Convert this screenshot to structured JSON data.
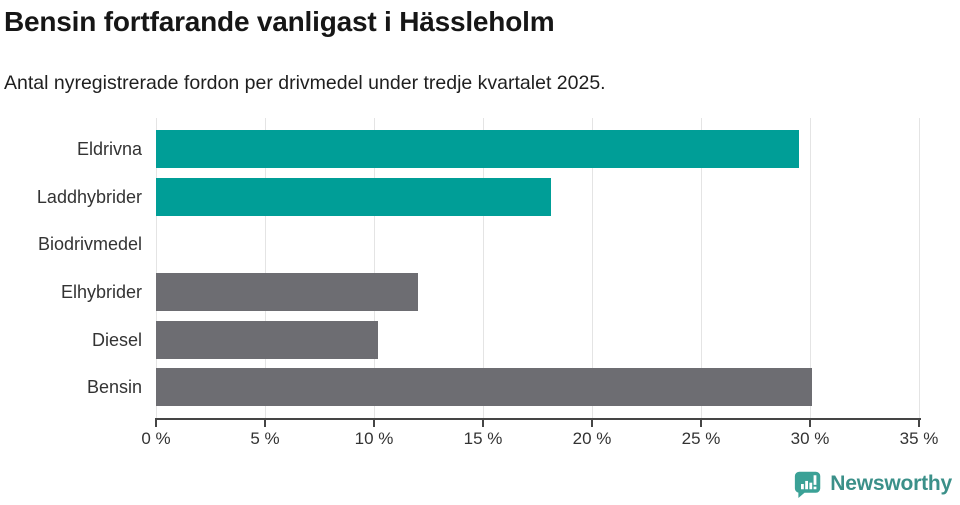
{
  "header": {
    "title": "Bensin fortfarande vanligast i Hässleholm",
    "subtitle": "Antal nyregistrerade fordon per drivmedel under tredje kvartalet 2025."
  },
  "chart_data": {
    "type": "bar",
    "orientation": "horizontal",
    "title": "Bensin fortfarande vanligast i Hässleholm",
    "subtitle": "Antal nyregistrerade fordon per drivmedel under tredje kvartalet 2025.",
    "categories": [
      "Eldrivna",
      "Laddhybrider",
      "Biodrivmedel",
      "Elhybrider",
      "Diesel",
      "Bensin"
    ],
    "values": [
      29.5,
      18.1,
      0,
      12.0,
      10.2,
      30.1
    ],
    "unit": "%",
    "xlim": [
      0,
      35
    ],
    "x_tick_values": [
      0,
      5,
      10,
      15,
      20,
      25,
      30,
      35
    ],
    "x_tick_labels": [
      "0 %",
      "5 %",
      "10 %",
      "15 %",
      "20 %",
      "25 %",
      "30 %",
      "35 %"
    ],
    "grid": true,
    "legend": false,
    "bar_colors": [
      "#009e97",
      "#009e97",
      "#009e97",
      "#6d6d72",
      "#6d6d72",
      "#6d6d72"
    ]
  },
  "colors": {
    "teal": "#009e97",
    "gray": "#6d6d72",
    "gridline": "#e4e4e4",
    "axis": "#454545",
    "brand_teal": "#3b9089",
    "logo_fill": "#3ba196"
  },
  "footer": {
    "brand": "Newsworthy"
  }
}
